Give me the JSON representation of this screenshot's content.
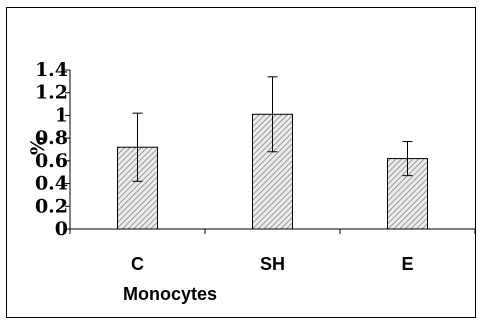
{
  "chart_data": {
    "type": "bar",
    "categories": [
      "C",
      "SH",
      "E"
    ],
    "values": [
      0.72,
      1.01,
      0.62
    ],
    "error": [
      0.3,
      0.33,
      0.15
    ],
    "xlabel": "Monocytes",
    "ylabel": "%",
    "ylim": [
      0,
      1.4
    ],
    "yticks": [
      "0",
      "0.2",
      "0.4",
      "0.6",
      "0.8",
      "1",
      "1.2",
      "1.4"
    ],
    "grid": false,
    "legend": "none",
    "bar_fill": "hatched-gray"
  }
}
